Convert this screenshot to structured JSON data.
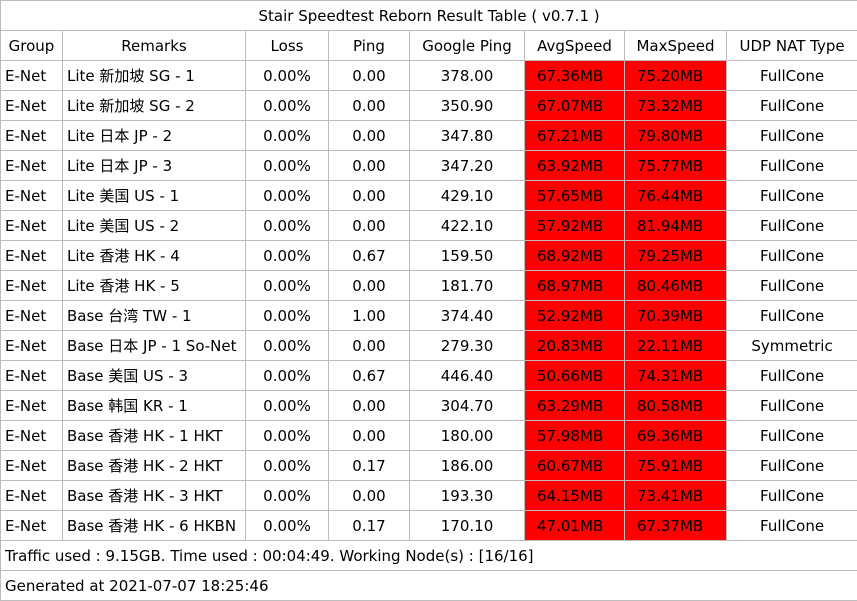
{
  "title": "Stair Speedtest Reborn Result Table ( v0.7.1 )",
  "columns": [
    "Group",
    "Remarks",
    "Loss",
    "Ping",
    "Google Ping",
    "AvgSpeed",
    "MaxSpeed",
    "UDP NAT Type"
  ],
  "rows": [
    [
      "E-Net",
      "Lite 新加坡 SG - 1",
      "0.00%",
      "0.00",
      "378.00",
      "67.36MB",
      "75.20MB",
      "FullCone"
    ],
    [
      "E-Net",
      "Lite 新加坡 SG - 2",
      "0.00%",
      "0.00",
      "350.90",
      "67.07MB",
      "73.32MB",
      "FullCone"
    ],
    [
      "E-Net",
      "Lite 日本 JP - 2",
      "0.00%",
      "0.00",
      "347.80",
      "67.21MB",
      "79.80MB",
      "FullCone"
    ],
    [
      "E-Net",
      "Lite 日本 JP - 3",
      "0.00%",
      "0.00",
      "347.20",
      "63.92MB",
      "75.77MB",
      "FullCone"
    ],
    [
      "E-Net",
      "Lite 美国 US - 1",
      "0.00%",
      "0.00",
      "429.10",
      "57.65MB",
      "76.44MB",
      "FullCone"
    ],
    [
      "E-Net",
      "Lite 美国 US - 2",
      "0.00%",
      "0.00",
      "422.10",
      "57.92MB",
      "81.94MB",
      "FullCone"
    ],
    [
      "E-Net",
      "Lite 香港 HK - 4",
      "0.00%",
      "0.67",
      "159.50",
      "68.92MB",
      "79.25MB",
      "FullCone"
    ],
    [
      "E-Net",
      "Lite 香港 HK - 5",
      "0.00%",
      "0.00",
      "181.70",
      "68.97MB",
      "80.46MB",
      "FullCone"
    ],
    [
      "E-Net",
      "Base 台湾 TW - 1",
      "0.00%",
      "1.00",
      "374.40",
      "52.92MB",
      "70.39MB",
      "FullCone"
    ],
    [
      "E-Net",
      "Base 日本 JP - 1 So-Net",
      "0.00%",
      "0.00",
      "279.30",
      "20.83MB",
      "22.11MB",
      "Symmetric"
    ],
    [
      "E-Net",
      "Base 美国 US - 3",
      "0.00%",
      "0.67",
      "446.40",
      "50.66MB",
      "74.31MB",
      "FullCone"
    ],
    [
      "E-Net",
      "Base 韩国 KR - 1",
      "0.00%",
      "0.00",
      "304.70",
      "63.29MB",
      "80.58MB",
      "FullCone"
    ],
    [
      "E-Net",
      "Base 香港 HK - 1 HKT",
      "0.00%",
      "0.00",
      "180.00",
      "57.98MB",
      "69.36MB",
      "FullCone"
    ],
    [
      "E-Net",
      "Base 香港 HK - 2 HKT",
      "0.00%",
      "0.17",
      "186.00",
      "60.67MB",
      "75.91MB",
      "FullCone"
    ],
    [
      "E-Net",
      "Base 香港 HK - 3 HKT",
      "0.00%",
      "0.00",
      "193.30",
      "64.15MB",
      "73.41MB",
      "FullCone"
    ],
    [
      "E-Net",
      "Base 香港 HK - 6 HKBN",
      "0.00%",
      "0.17",
      "170.10",
      "47.01MB",
      "67.37MB",
      "FullCone"
    ]
  ],
  "traffic_line": "Traffic used : 9.15GB. Time used : 00:04:49. Working Node(s) : [16/16]",
  "generated_line": "Generated at 2021-07-07 18:25:46",
  "colors": {
    "speed_cell": "#ff0000",
    "border": "#bdbdbd",
    "background": "#ffffff"
  }
}
